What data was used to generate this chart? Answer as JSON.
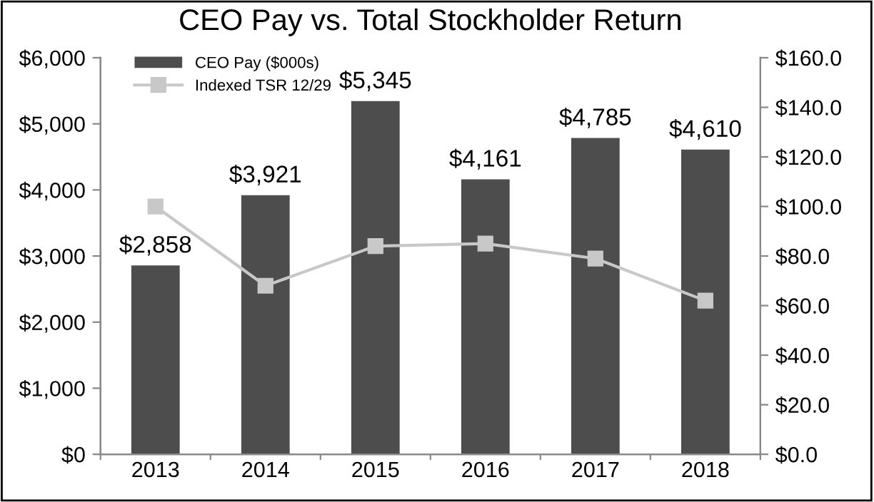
{
  "chart_data": {
    "type": "bar",
    "title": "CEO Pay vs. Total Stockholder Return",
    "categories": [
      "2013",
      "2014",
      "2015",
      "2016",
      "2017",
      "2018"
    ],
    "series": [
      {
        "name": "CEO Pay ($000s)",
        "color": "#4d4d4d",
        "values": [
          2858,
          3921,
          5345,
          4161,
          4785,
          4610
        ],
        "value_labels": [
          "$2,858",
          "$3,921",
          "$5,345",
          "$4,161",
          "$4,785",
          "$4,610"
        ]
      },
      {
        "name": "Indexed TSR 12/29",
        "type": "line",
        "axis": "y2",
        "color": "#c8c8c8",
        "marker": "square",
        "values": [
          100,
          68,
          84,
          85,
          79,
          62
        ]
      }
    ],
    "ylim": [
      0,
      6000
    ],
    "yticks": [
      {
        "value": 0,
        "label": "$0"
      },
      {
        "value": 1000,
        "label": "$1,000"
      },
      {
        "value": 2000,
        "label": "$2,000"
      },
      {
        "value": 3000,
        "label": "$3,000"
      },
      {
        "value": 4000,
        "label": "$4,000"
      },
      {
        "value": 5000,
        "label": "$5,000"
      },
      {
        "value": 6000,
        "label": "$6,000"
      }
    ],
    "y2lim": [
      0,
      160
    ],
    "y2ticks": [
      {
        "value": 0,
        "label": "$0.0"
      },
      {
        "value": 20,
        "label": "$20.0"
      },
      {
        "value": 40,
        "label": "$40.0"
      },
      {
        "value": 60,
        "label": "$60.0"
      },
      {
        "value": 80,
        "label": "$80.0"
      },
      {
        "value": 100,
        "label": "$100.0"
      },
      {
        "value": 120,
        "label": "$120.0"
      },
      {
        "value": 140,
        "label": "$140.0"
      },
      {
        "value": 160,
        "label": "$160.0"
      }
    ],
    "legend": "top left",
    "grid": false
  }
}
